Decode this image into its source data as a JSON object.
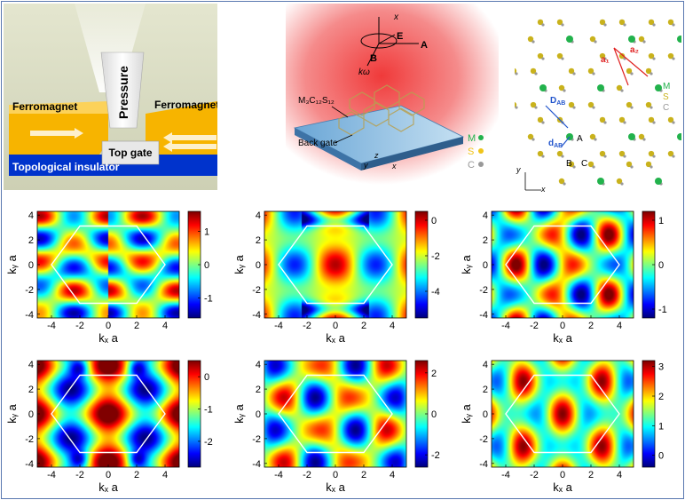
{
  "top": {
    "device": {
      "pressure": "Pressure",
      "ferro_left": "Ferromagnet",
      "ferro_right": "Ferromagnet",
      "top_gate": "Top gate",
      "substrate": "Topological insulator"
    },
    "setup": {
      "material": "M₃C₁₂S₁₂",
      "back_gate": "Back gate",
      "E": "E",
      "A": "A",
      "B": "B",
      "k": "kω",
      "x_beam": "x",
      "axis_z": "z",
      "axis_y": "y",
      "axis_x": "x",
      "legend": [
        {
          "label": "M",
          "color": "#22b24c"
        },
        {
          "label": "S",
          "color": "#f0c419"
        },
        {
          "label": "C",
          "color": "#999999"
        }
      ]
    },
    "lattice": {
      "a1": "a₁",
      "a2": "a₂",
      "D": "D",
      "D_sub": "AB",
      "d": "d",
      "d_sub": "AB",
      "A": "A",
      "B": "B",
      "C": "C",
      "axis_y": "y",
      "axis_x": "x",
      "legend": [
        {
          "label": "M",
          "color": "#22b24c"
        },
        {
          "label": "S",
          "color": "#c9b21c"
        },
        {
          "label": "C",
          "color": "#999999"
        }
      ]
    }
  },
  "chart_data": [
    {
      "type": "heatmap",
      "xlabel": "kₓ a",
      "ylabel": "kᵧ a",
      "xticks": [
        -4,
        -2,
        0,
        2,
        4
      ],
      "yticks": [
        -4,
        -2,
        0,
        2,
        4
      ],
      "xlim": [
        -5,
        5
      ],
      "ylim": [
        -4.3,
        4.3
      ],
      "colorbar_ticks": [
        1,
        0,
        -1
      ],
      "clim": [
        -1.6,
        1.6
      ],
      "pattern": 1
    },
    {
      "type": "heatmap",
      "xlabel": "kₓ a",
      "ylabel": "kᵧ a",
      "xticks": [
        -4,
        -2,
        0,
        2,
        4
      ],
      "yticks": [
        -4,
        -2,
        0,
        2,
        4
      ],
      "xlim": [
        -5,
        5
      ],
      "ylim": [
        -4.3,
        4.3
      ],
      "colorbar_ticks": [
        0,
        -2,
        -4
      ],
      "clim": [
        -5.5,
        0.5
      ],
      "pattern": 2
    },
    {
      "type": "heatmap",
      "xlabel": "kₓ a",
      "ylabel": "kᵧ a",
      "xticks": [
        -4,
        -2,
        0,
        2,
        4
      ],
      "yticks": [
        -4,
        -2,
        0,
        2,
        4
      ],
      "xlim": [
        -5,
        5
      ],
      "ylim": [
        -4.3,
        4.3
      ],
      "colorbar_ticks": [
        1,
        0,
        -1
      ],
      "clim": [
        -1.2,
        1.2
      ],
      "pattern": 3
    },
    {
      "type": "heatmap",
      "xlabel": "kₓ a",
      "ylabel": "kᵧ a",
      "xticks": [
        -4,
        -2,
        0,
        2,
        4
      ],
      "yticks": [
        -4,
        -2,
        0,
        2,
        4
      ],
      "xlim": [
        -5,
        5
      ],
      "ylim": [
        -4.3,
        4.3
      ],
      "colorbar_ticks": [
        0,
        -1,
        -2
      ],
      "clim": [
        -2.8,
        0.5
      ],
      "pattern": 4
    },
    {
      "type": "heatmap",
      "xlabel": "kₓ a",
      "ylabel": "kᵧ a",
      "xticks": [
        -4,
        -2,
        0,
        2,
        4
      ],
      "yticks": [
        -4,
        -2,
        0,
        2,
        4
      ],
      "xlim": [
        -5,
        5
      ],
      "ylim": [
        -4.3,
        4.3
      ],
      "colorbar_ticks": [
        2,
        0,
        -2
      ],
      "clim": [
        -2.6,
        2.6
      ],
      "pattern": 5
    },
    {
      "type": "heatmap",
      "xlabel": "kₓ a",
      "ylabel": "kᵧ a",
      "xticks": [
        -4,
        -2,
        0,
        2,
        4
      ],
      "yticks": [
        -4,
        -2,
        0,
        2,
        4
      ],
      "xlim": [
        -5,
        5
      ],
      "ylim": [
        -4.3,
        4.3
      ],
      "colorbar_ticks": [
        3,
        2,
        1,
        0
      ],
      "clim": [
        -0.4,
        3.2
      ],
      "pattern": 6
    }
  ]
}
